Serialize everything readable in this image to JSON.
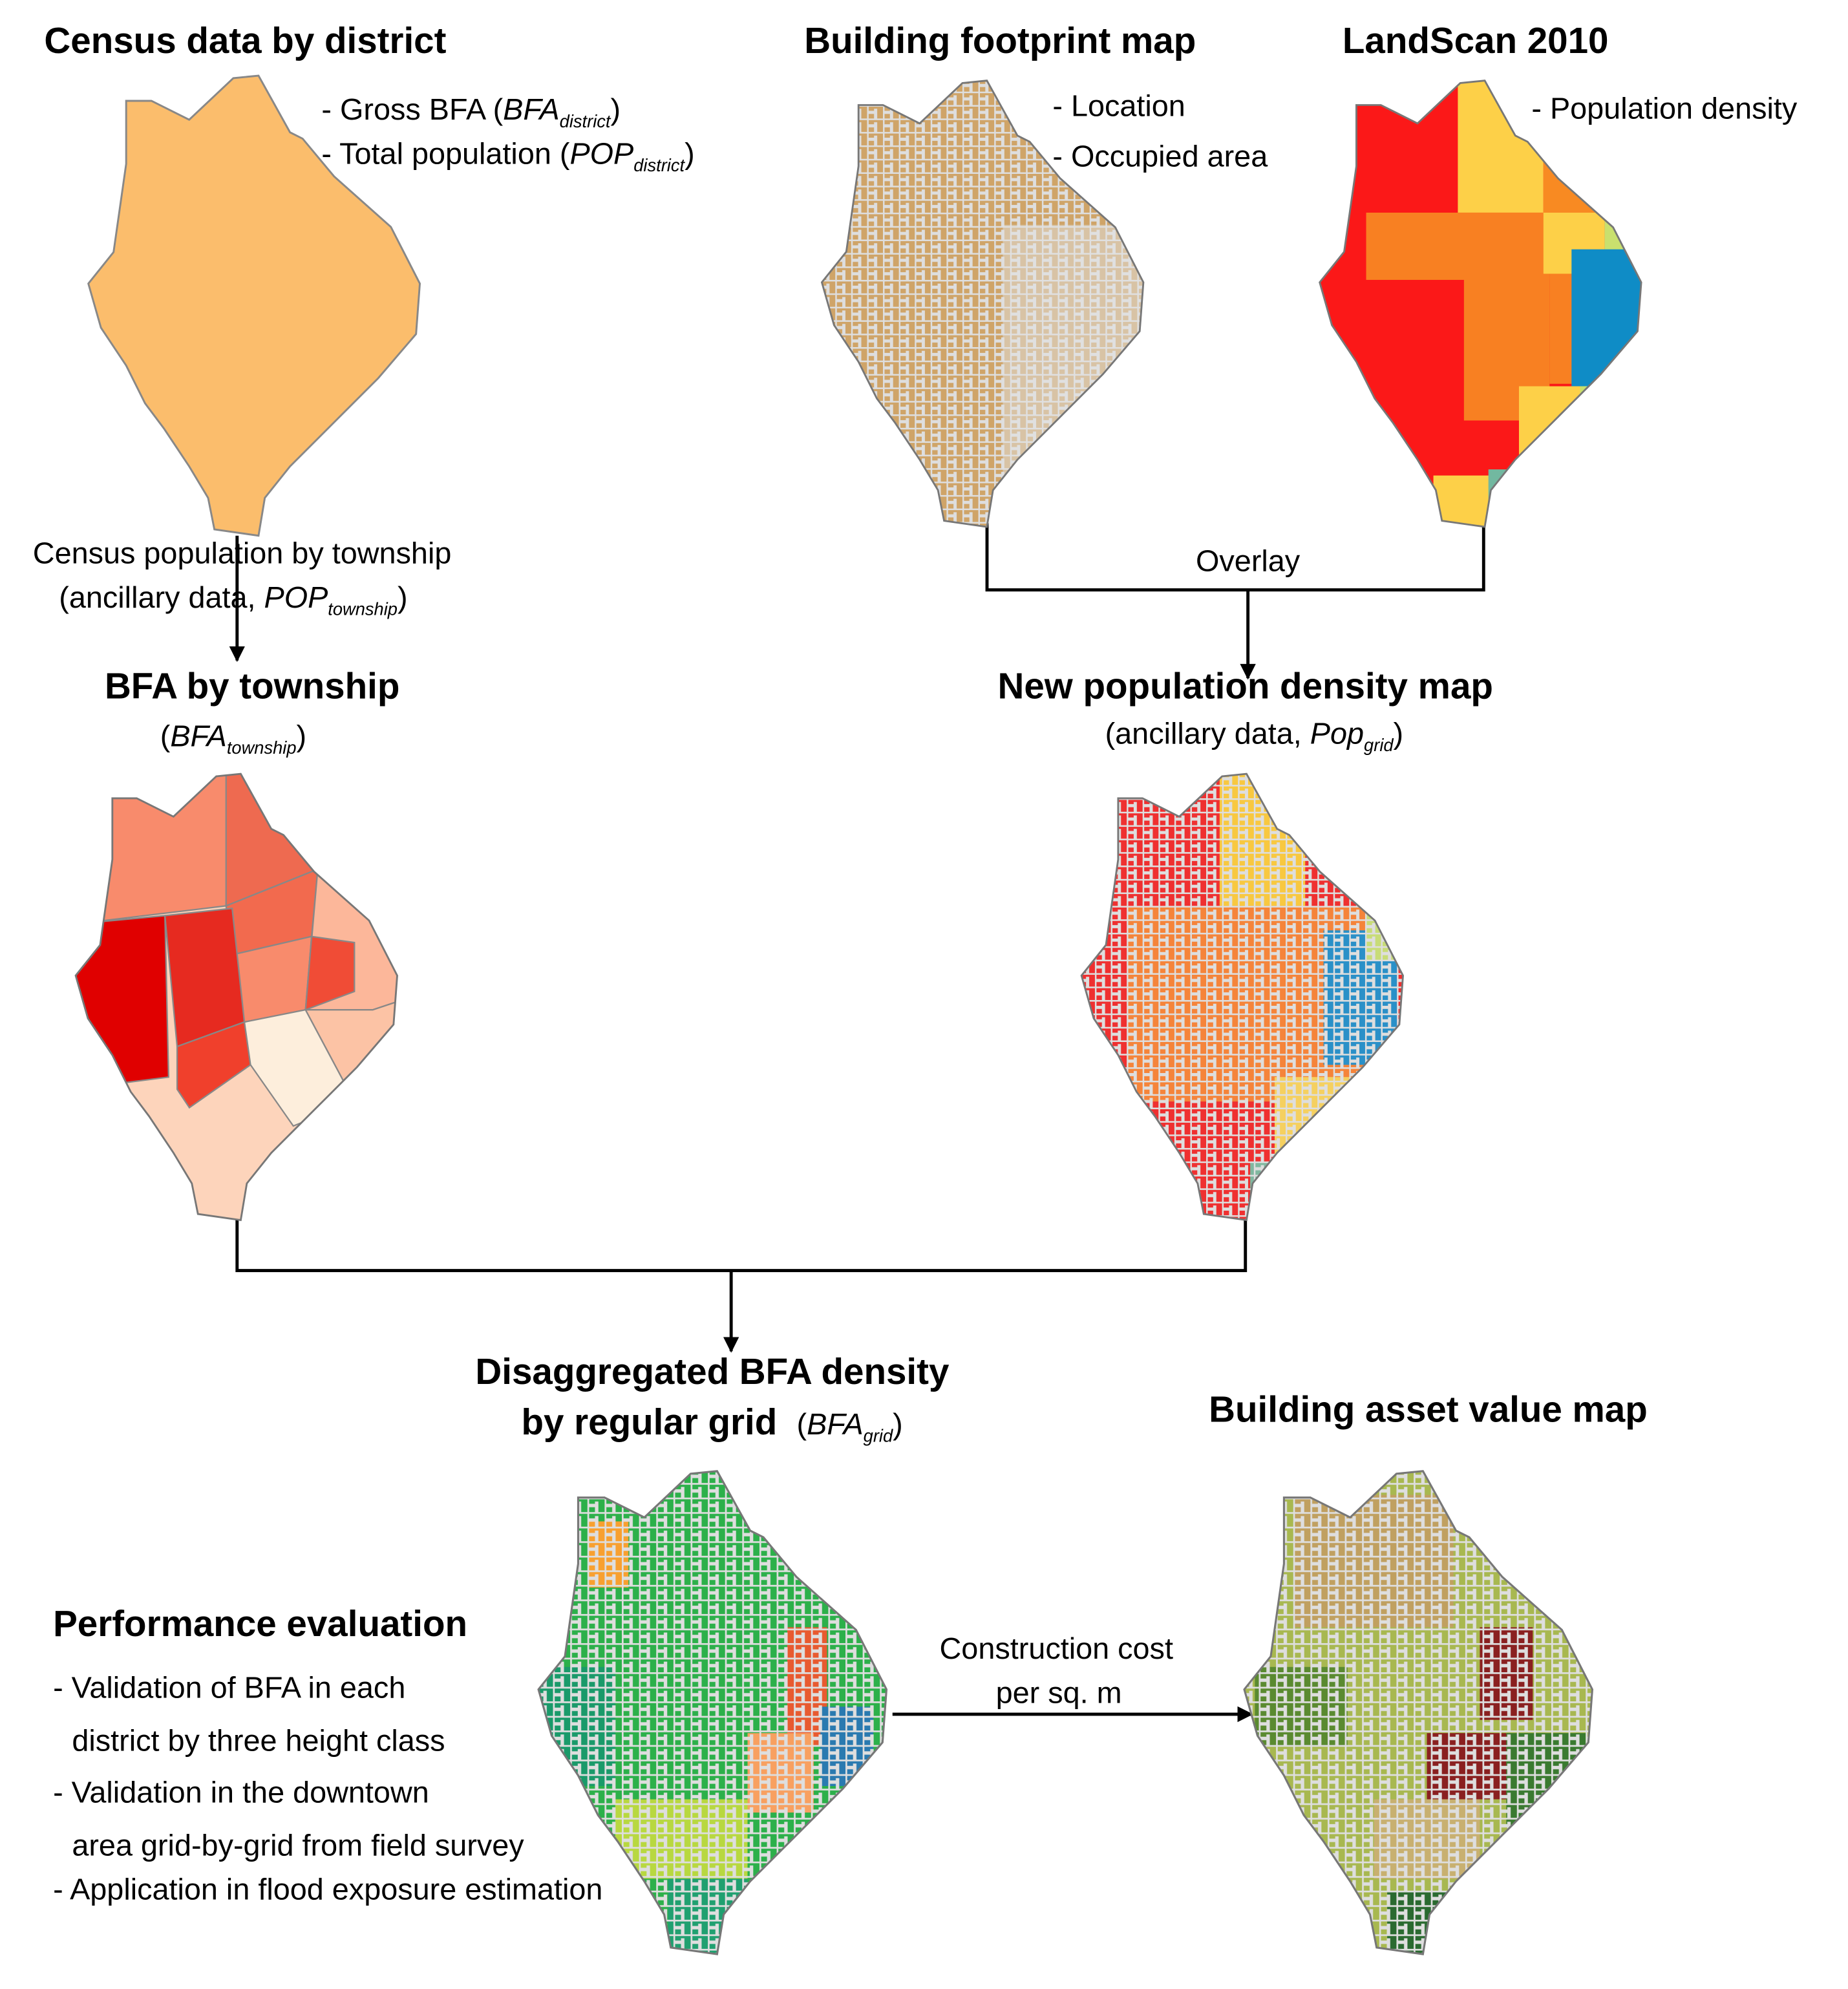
{
  "census": {
    "title": "Census data by district",
    "items": [
      {
        "pre": "- Gross BFA (",
        "var": "BFA",
        "sub": "district",
        "post": ")"
      },
      {
        "pre": "- Total population (",
        "var": "POP",
        "sub": "district",
        "post": ")"
      }
    ]
  },
  "footprint": {
    "title": "Building footprint map",
    "items": [
      "- Location",
      "- Occupied area"
    ]
  },
  "landscan": {
    "title": "LandScan 2010",
    "items": [
      "- Population density"
    ]
  },
  "census_edge": {
    "line1": "Census population by township",
    "line2": {
      "pre": "(ancillary data, ",
      "var": "POP",
      "sub": "township",
      "post": ")"
    }
  },
  "township": {
    "title": "BFA by township",
    "subtitle": {
      "pre": "(",
      "var": "BFA",
      "sub": "township",
      "post": ")"
    }
  },
  "overlay_edge": {
    "label": "Overlay"
  },
  "new_pop": {
    "title": "New population density map",
    "subtitle": {
      "pre": "(ancillary data, ",
      "var": "Pop",
      "sub": "grid",
      "post": ")"
    }
  },
  "disagg": {
    "title_lines": [
      "Disaggregated BFA density",
      "by regular grid"
    ],
    "note": {
      "pre": "(",
      "var": "BFA",
      "sub": "grid",
      "post": ")"
    }
  },
  "asset": {
    "title": "Building asset value map"
  },
  "cost_edge": {
    "lines": [
      "Construction cost",
      "per sq. m"
    ]
  },
  "performance": {
    "title": "Performance evaluation",
    "items": [
      [
        "- Validation of BFA in each",
        "district by three height class"
      ],
      [
        "- Validation in the downtown",
        "area grid-by-grid from field survey"
      ],
      [
        "- Application in flood exposure estimation"
      ]
    ]
  }
}
